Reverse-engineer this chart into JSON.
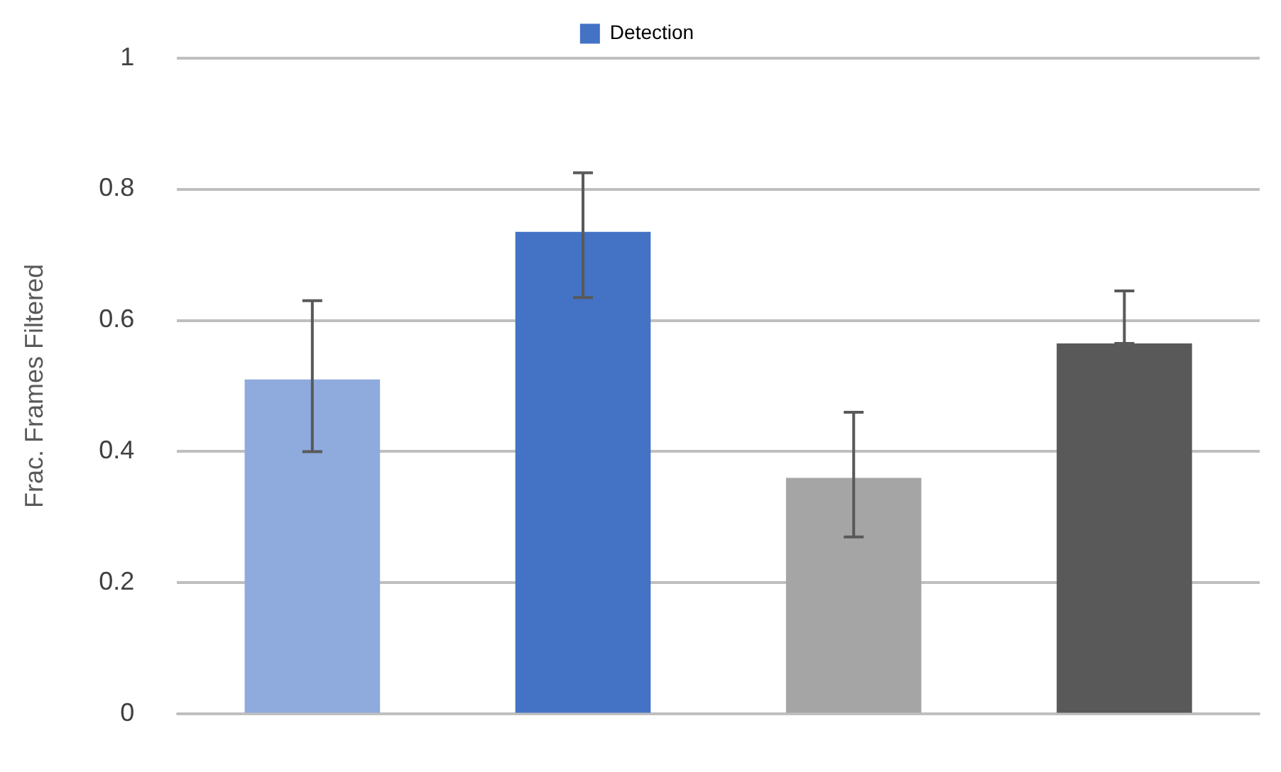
{
  "chart_data": {
    "type": "bar",
    "ylabel": "Frac. Frames Filtered",
    "categories": [
      null,
      null,
      null,
      null
    ],
    "series": [
      {
        "name": "Detection",
        "color": "#4472c4",
        "colors": [
          "#8faadc",
          "#4472c4",
          "#a5a5a5",
          "#595959"
        ],
        "values": [
          0.51,
          0.735,
          0.36,
          0.565
        ],
        "errors": [
          [
            0.4,
            0.63
          ],
          [
            0.635,
            0.825
          ],
          [
            0.27,
            0.46
          ],
          [
            0.565,
            0.645
          ]
        ]
      }
    ],
    "ylim": [
      0,
      1
    ],
    "yticks": [
      0,
      0.2,
      0.4,
      0.6,
      0.8,
      1
    ],
    "grid": "y",
    "legend": "top"
  }
}
